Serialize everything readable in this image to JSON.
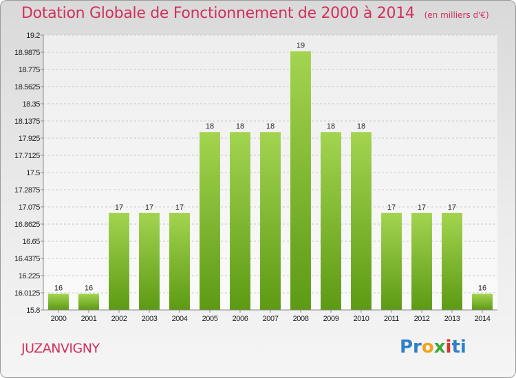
{
  "header": {
    "title": "Dotation Globale de Fonctionnement de 2000 à 2014",
    "unit_note": "(en milliers d'€)"
  },
  "footer": {
    "commune": "JUZANVIGNY",
    "logo_text": "Proxiti"
  },
  "colors": {
    "accent": "#d1305c",
    "bar_top": "#a3d450",
    "bar_bottom": "#5d9a14"
  },
  "chart_data": {
    "type": "bar",
    "categories": [
      "2000",
      "2001",
      "2002",
      "2003",
      "2004",
      "2005",
      "2006",
      "2007",
      "2008",
      "2009",
      "2010",
      "2011",
      "2012",
      "2013",
      "2014"
    ],
    "values": [
      16,
      16,
      17,
      17,
      17,
      18,
      18,
      18,
      19,
      18,
      18,
      17,
      17,
      17,
      16
    ],
    "data_labels": [
      "16",
      "16",
      "17",
      "17",
      "17",
      "18",
      "18",
      "18",
      "19",
      "18",
      "18",
      "17",
      "17",
      "17",
      "16"
    ],
    "ylim": [
      15.8,
      19.2
    ],
    "yticks": [
      "15.8",
      "16.0125",
      "16.225",
      "16.4375",
      "16.65",
      "16.8625",
      "17.075",
      "17.2875",
      "17.5",
      "17.7125",
      "17.925",
      "18.1375",
      "18.35",
      "18.5625",
      "18.775",
      "18.9875",
      "19.2"
    ],
    "grid": true,
    "legend": "none",
    "xlabel": "",
    "ylabel": ""
  }
}
